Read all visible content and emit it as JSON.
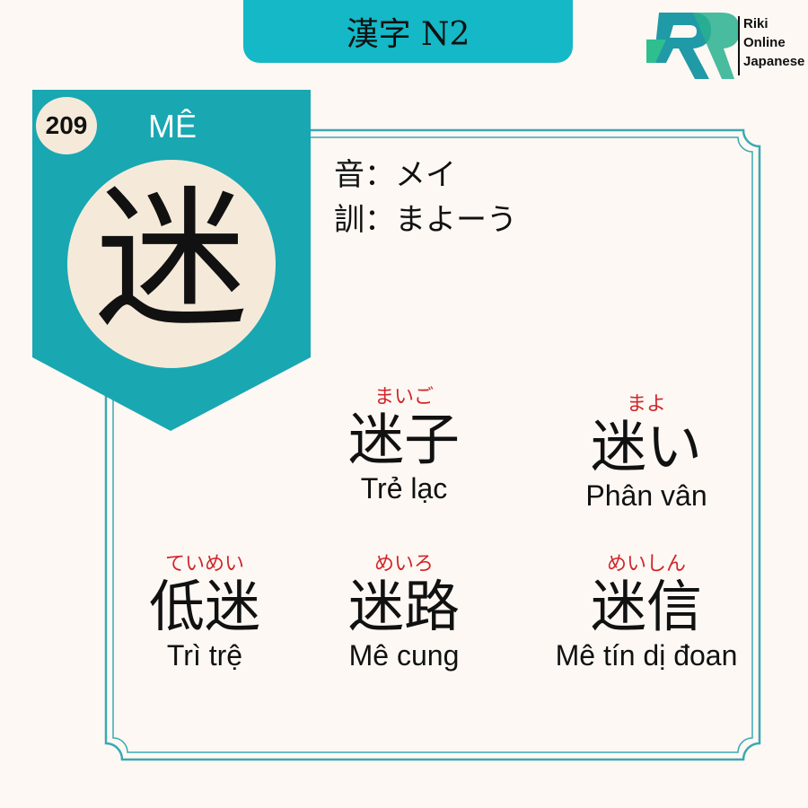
{
  "header": {
    "title": "漢字 N2"
  },
  "brand": {
    "line1": "Riki",
    "line2": "Online",
    "line3": "Japanese"
  },
  "card": {
    "number": "209",
    "han_viet": "MÊ",
    "kanji": "迷",
    "on_reading": {
      "label": "音",
      "value": "：メイ"
    },
    "kun_reading": {
      "label": "訓",
      "value": "：まよーう"
    }
  },
  "words": [
    {
      "furigana": "まいご",
      "kanji": "迷子",
      "meaning": "Trẻ lạc"
    },
    {
      "furigana": "まよ",
      "kanji": "迷い",
      "meaning": "Phân vân"
    },
    {
      "furigana": "ていめい",
      "kanji": "低迷",
      "meaning": "Trì trệ"
    },
    {
      "furigana": "めいろ",
      "kanji": "迷路",
      "meaning": "Mê cung"
    },
    {
      "furigana": "めいしん",
      "kanji": "迷信",
      "meaning": "Mê tín dị đoan"
    }
  ],
  "colors": {
    "teal": "#14b8c6",
    "banner": "#19a7b2",
    "cream": "#f5ead9",
    "furigana": "#d0262c",
    "background": "#fdf8f3"
  }
}
